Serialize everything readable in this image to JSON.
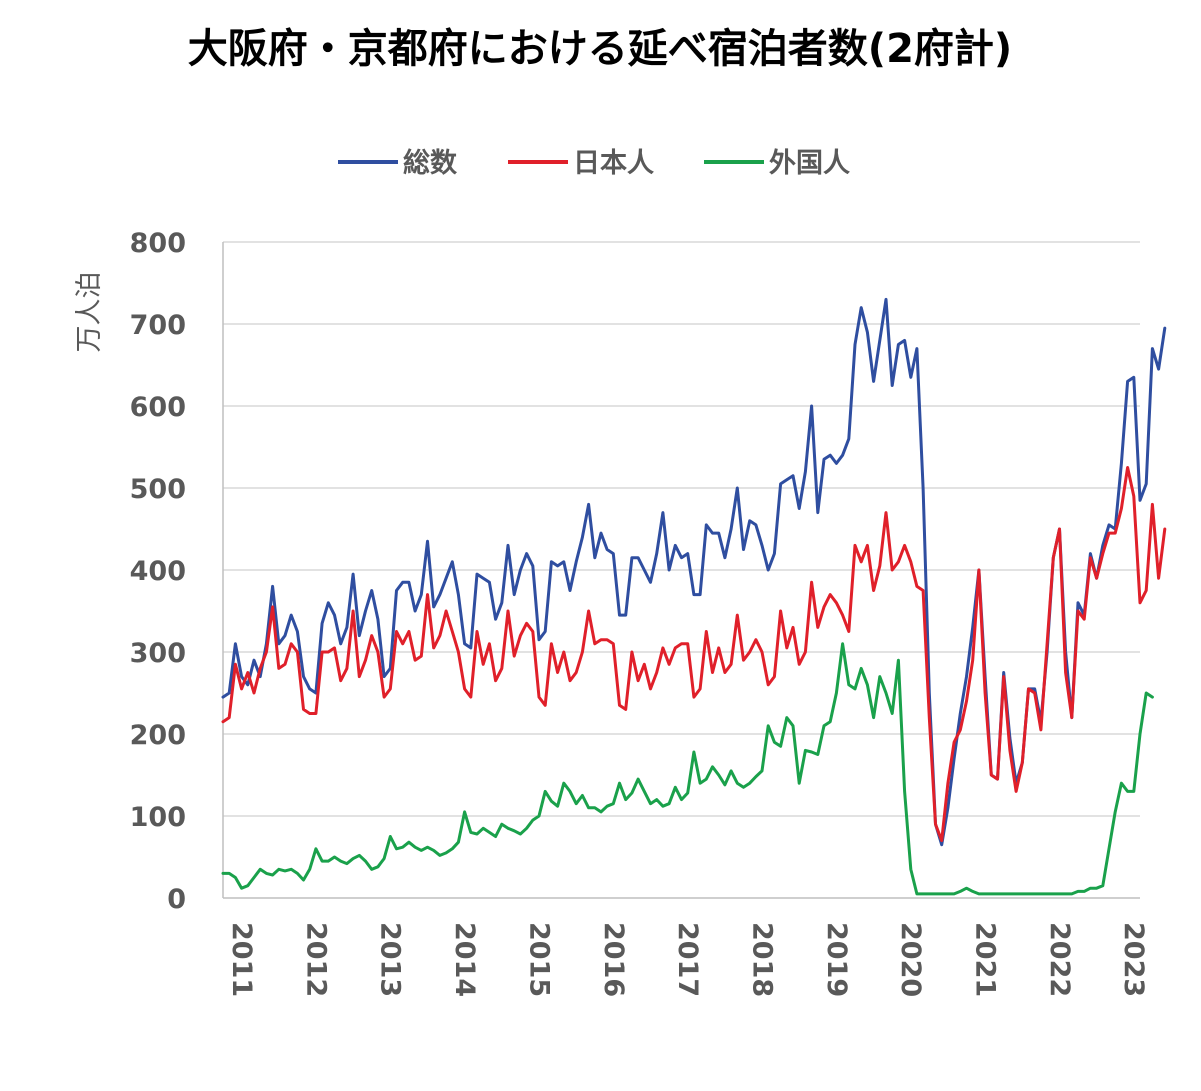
{
  "chart_data": {
    "type": "line",
    "title": "大阪府・京都府における延べ宿泊者数(2府計)",
    "ylabel": "万人泊",
    "xlabel": "",
    "ylim": [
      0,
      800
    ],
    "yticks": [
      0,
      100,
      200,
      300,
      400,
      500,
      600,
      700,
      800
    ],
    "grid": true,
    "legend_position": "top-center",
    "x_start": "2011-01",
    "x_tick_labels": [
      "2011",
      "2012",
      "2013",
      "2014",
      "2015",
      "2016",
      "2017",
      "2018",
      "2019",
      "2020",
      "2021",
      "2022",
      "2023"
    ],
    "series": [
      {
        "name": "総数",
        "color": "#2f4ea0",
        "values": [
          245,
          250,
          310,
          270,
          260,
          290,
          270,
          310,
          380,
          310,
          320,
          345,
          325,
          270,
          255,
          250,
          335,
          360,
          345,
          310,
          330,
          395,
          320,
          350,
          375,
          340,
          270,
          280,
          375,
          385,
          385,
          350,
          370,
          435,
          355,
          370,
          390,
          410,
          370,
          310,
          305,
          395,
          390,
          385,
          340,
          360,
          430,
          370,
          400,
          420,
          405,
          315,
          325,
          410,
          405,
          410,
          375,
          410,
          440,
          480,
          415,
          445,
          425,
          420,
          345,
          345,
          415,
          415,
          400,
          385,
          420,
          470,
          400,
          430,
          415,
          420,
          370,
          370,
          455,
          445,
          445,
          415,
          450,
          500,
          425,
          460,
          455,
          430,
          400,
          420,
          505,
          510,
          515,
          475,
          520,
          600,
          470,
          535,
          540,
          530,
          540,
          560,
          675,
          720,
          690,
          630,
          680,
          730,
          625,
          675,
          680,
          635,
          670,
          500,
          250,
          90,
          65,
          110,
          170,
          225,
          270,
          330,
          400,
          270,
          150,
          145,
          275,
          195,
          140,
          165,
          255,
          255,
          215,
          300,
          415,
          450,
          300,
          220,
          360,
          345,
          420,
          390,
          430,
          455,
          450,
          530,
          630,
          635,
          485,
          505,
          670,
          645,
          695
        ]
      },
      {
        "name": "日本人",
        "color": "#e0202a",
        "values": [
          215,
          220,
          285,
          255,
          275,
          250,
          280,
          300,
          355,
          280,
          285,
          310,
          300,
          230,
          225,
          225,
          300,
          300,
          305,
          265,
          280,
          350,
          270,
          290,
          320,
          300,
          245,
          255,
          325,
          310,
          325,
          290,
          295,
          370,
          305,
          320,
          350,
          325,
          300,
          255,
          245,
          325,
          285,
          310,
          265,
          280,
          350,
          295,
          320,
          335,
          325,
          245,
          235,
          310,
          275,
          300,
          265,
          275,
          300,
          350,
          310,
          315,
          315,
          310,
          235,
          230,
          300,
          265,
          285,
          255,
          275,
          305,
          285,
          305,
          310,
          310,
          245,
          255,
          325,
          275,
          305,
          275,
          285,
          345,
          290,
          300,
          315,
          300,
          260,
          270,
          350,
          305,
          330,
          285,
          300,
          385,
          330,
          355,
          370,
          360,
          345,
          325,
          430,
          410,
          430,
          375,
          405,
          470,
          400,
          410,
          430,
          410,
          380,
          375,
          220,
          90,
          70,
          140,
          190,
          205,
          240,
          290,
          400,
          250,
          150,
          145,
          270,
          180,
          130,
          165,
          255,
          250,
          205,
          310,
          415,
          450,
          275,
          220,
          350,
          340,
          415,
          390,
          420,
          445,
          445,
          475,
          525,
          490,
          360,
          375,
          480,
          390,
          450
        ]
      },
      {
        "name": "外国人",
        "color": "#1aa14b",
        "values": [
          30,
          30,
          25,
          12,
          15,
          25,
          35,
          30,
          28,
          35,
          33,
          35,
          30,
          22,
          35,
          60,
          45,
          45,
          50,
          45,
          42,
          48,
          52,
          45,
          35,
          38,
          48,
          75,
          60,
          62,
          68,
          62,
          58,
          62,
          58,
          52,
          55,
          60,
          68,
          105,
          80,
          78,
          85,
          80,
          75,
          90,
          85,
          82,
          78,
          85,
          95,
          100,
          130,
          118,
          112,
          140,
          130,
          115,
          125,
          110,
          110,
          105,
          112,
          115,
          140,
          120,
          128,
          145,
          130,
          115,
          120,
          112,
          115,
          135,
          120,
          128,
          178,
          140,
          145,
          160,
          150,
          138,
          155,
          140,
          135,
          140,
          148,
          155,
          210,
          190,
          185,
          220,
          210,
          140,
          180,
          178,
          175,
          210,
          215,
          250,
          310,
          260,
          255,
          280,
          260,
          220,
          270,
          250,
          225,
          290,
          130,
          35,
          5,
          5,
          5,
          5,
          5,
          5,
          5,
          8,
          12,
          8,
          5,
          5,
          5,
          5,
          5,
          5,
          5,
          5,
          5,
          5,
          5,
          5,
          5,
          5,
          5,
          5,
          8,
          8,
          12,
          12,
          15,
          60,
          105,
          140,
          130,
          130,
          200,
          250,
          245
        ]
      }
    ]
  }
}
